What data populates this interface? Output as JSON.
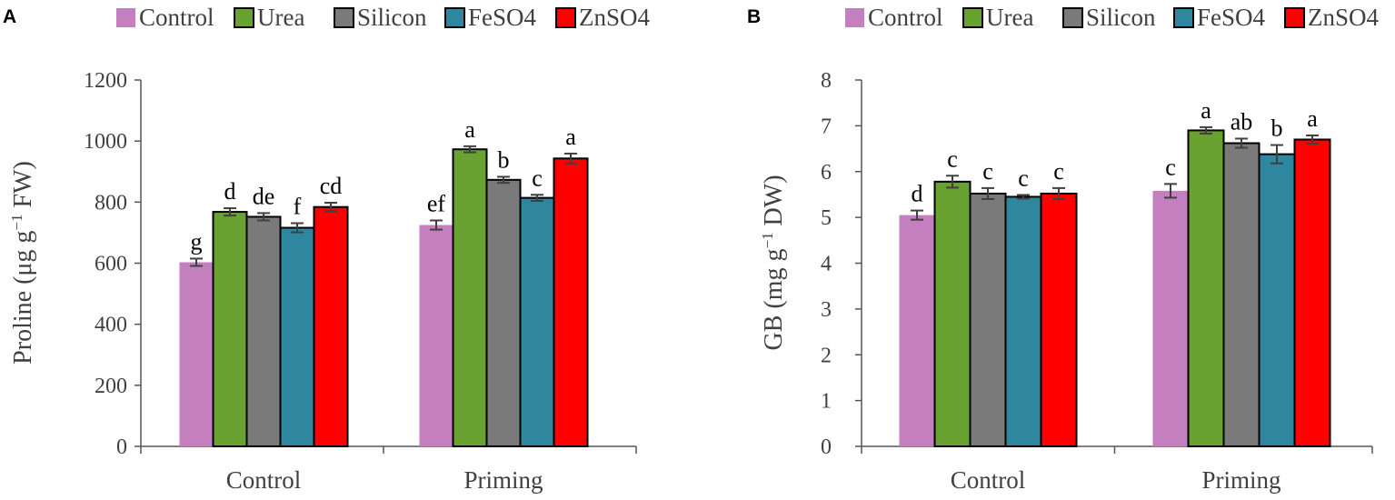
{
  "chart_data": [
    {
      "panel": "A",
      "type": "bar",
      "categories": [
        "Control",
        "Priming"
      ],
      "ylabel": "Proline (μg g−1 FW)",
      "ylabel_parts": [
        "Proline (μg g",
        "−1",
        " FW)"
      ],
      "ylim": [
        0,
        1200
      ],
      "yticks": [
        0,
        200,
        400,
        600,
        800,
        1000,
        1200
      ],
      "grid": false,
      "legend_position": "top",
      "series": [
        {
          "name": "Control",
          "color": "#c47fbe",
          "values": [
            603,
            725
          ],
          "errors": [
            12,
            15
          ],
          "letters": [
            "g",
            "ef"
          ]
        },
        {
          "name": "Urea",
          "color": "#6aa232",
          "values": [
            768,
            973
          ],
          "errors": [
            12,
            10
          ],
          "letters": [
            "d",
            "a"
          ]
        },
        {
          "name": "Silicon",
          "color": "#7a7a7a",
          "values": [
            752,
            873
          ],
          "errors": [
            12,
            10
          ],
          "letters": [
            "de",
            "b"
          ]
        },
        {
          "name": "FeSO4",
          "color": "#2e879e",
          "values": [
            716,
            814
          ],
          "errors": [
            15,
            10
          ],
          "letters": [
            "f",
            "c"
          ]
        },
        {
          "name": "ZnSO4",
          "color": "#ff0000",
          "values": [
            784,
            943
          ],
          "errors": [
            14,
            16
          ],
          "letters": [
            "cd",
            "a"
          ]
        }
      ]
    },
    {
      "panel": "B",
      "type": "bar",
      "categories": [
        "Control",
        "Priming"
      ],
      "ylabel": "GB (mg g−1 DW)",
      "ylabel_parts": [
        "GB (mg g",
        "−1",
        " DW)"
      ],
      "ylim": [
        0,
        8
      ],
      "yticks": [
        0,
        1,
        2,
        3,
        4,
        5,
        6,
        7,
        8
      ],
      "grid": false,
      "legend_position": "top",
      "series": [
        {
          "name": "Control",
          "color": "#c47fbe",
          "values": [
            5.05,
            5.58
          ],
          "errors": [
            0.1,
            0.15
          ],
          "letters": [
            "d",
            "c"
          ]
        },
        {
          "name": "Urea",
          "color": "#6aa232",
          "values": [
            5.78,
            6.9
          ],
          "errors": [
            0.13,
            0.07
          ],
          "letters": [
            "c",
            "a"
          ]
        },
        {
          "name": "Silicon",
          "color": "#7a7a7a",
          "values": [
            5.52,
            6.62
          ],
          "errors": [
            0.12,
            0.1
          ],
          "letters": [
            "c",
            "ab"
          ]
        },
        {
          "name": "FeSO4",
          "color": "#2e879e",
          "values": [
            5.45,
            6.38
          ],
          "errors": [
            0.04,
            0.2
          ],
          "letters": [
            "c",
            "b"
          ]
        },
        {
          "name": "ZnSO4",
          "color": "#ff0000",
          "values": [
            5.52,
            6.7
          ],
          "errors": [
            0.12,
            0.09
          ],
          "letters": [
            "c",
            "a"
          ]
        }
      ]
    }
  ]
}
